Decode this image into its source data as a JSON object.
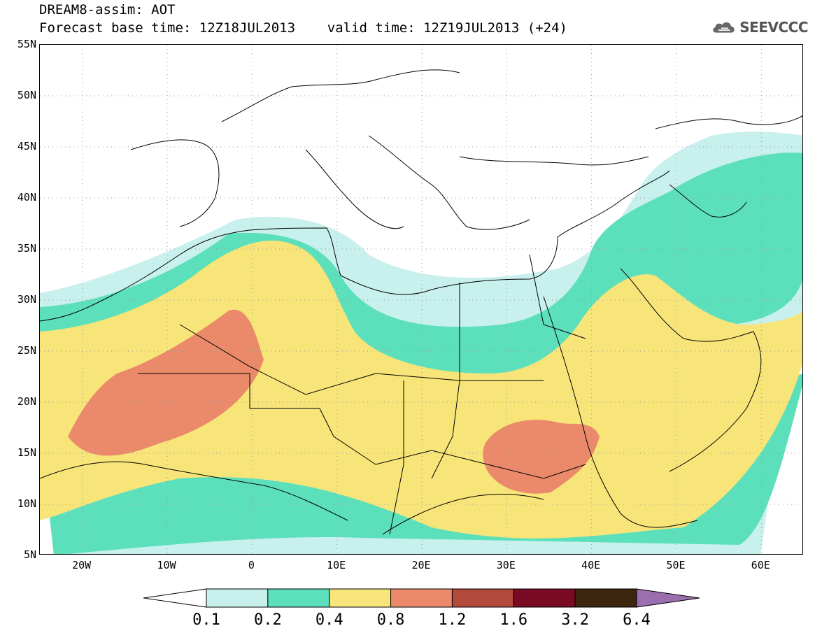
{
  "title": {
    "line1": "DREAM8-assim: AOT",
    "line2": "Forecast base time: 12Z18JUL2013    valid time: 12Z19JUL2013 (+24)"
  },
  "logo": {
    "text": "SEEVCCC",
    "icon": "cloud-icon"
  },
  "axes": {
    "lat_labels": [
      "55N",
      "50N",
      "45N",
      "40N",
      "35N",
      "30N",
      "25N",
      "20N",
      "15N",
      "10N",
      "5N"
    ],
    "lon_labels": [
      "20W",
      "10W",
      "0",
      "10E",
      "20E",
      "30E",
      "40E",
      "50E",
      "60E"
    ],
    "lon_range": [
      -25,
      65
    ],
    "lat_range": [
      5,
      55
    ]
  },
  "legend": {
    "levels": [
      "0.1",
      "0.2",
      "0.4",
      "0.8",
      "1.2",
      "1.6",
      "3.2",
      "6.4"
    ],
    "colors": [
      "#ffffff",
      "#c8f0ec",
      "#5ce0bc",
      "#f7e579",
      "#ea8a6a",
      "#b14a3a",
      "#7a0a24",
      "#3d2510",
      "#9b6eb0"
    ]
  },
  "colors": {
    "aot_0_1_0_2": "#c8f0ec",
    "aot_0_2_0_4": "#5ce0bc",
    "aot_0_4_0_8": "#f7e579",
    "aot_0_8_1_2": "#ea8a6a",
    "coastline": "#000000",
    "grid": "#999999"
  }
}
